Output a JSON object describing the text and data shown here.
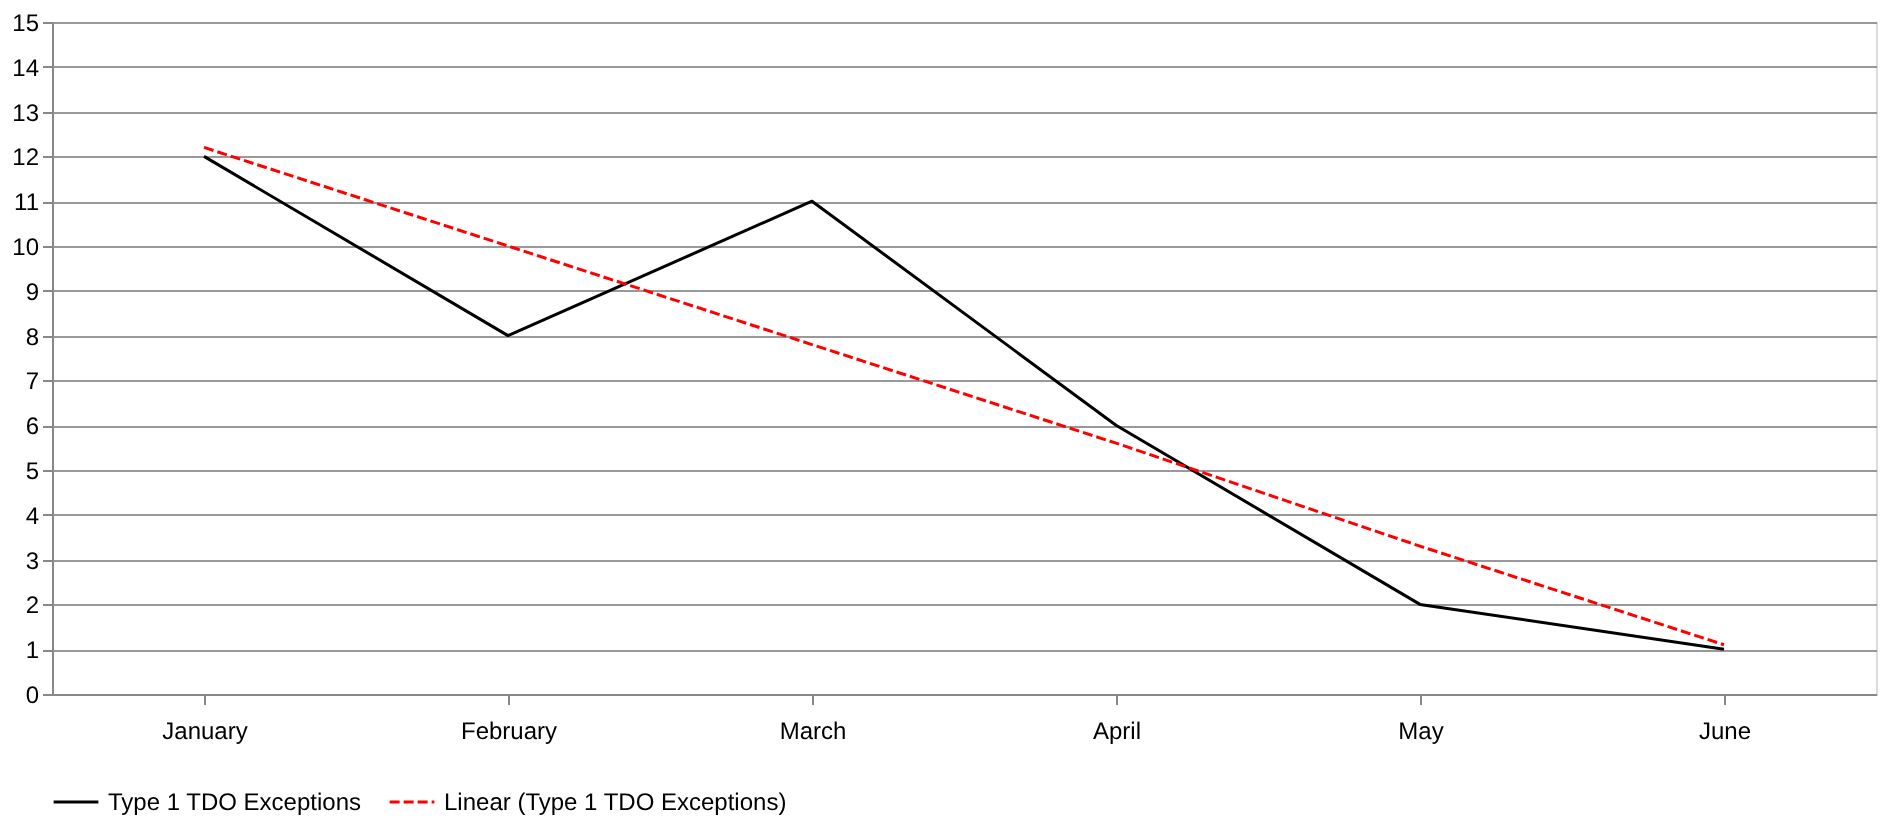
{
  "chart_data": {
    "type": "line",
    "categories": [
      "January",
      "February",
      "March",
      "April",
      "May",
      "June"
    ],
    "series": [
      {
        "name": "Type 1 TDO Exceptions",
        "color": "#000000",
        "values": [
          12,
          8,
          11,
          6,
          2,
          1
        ],
        "line_style": "solid"
      },
      {
        "name": "Linear (Type 1 TDO Exceptions)",
        "color": "#ff0000",
        "values": [
          12.2,
          10.0,
          7.8,
          5.6,
          3.3,
          1.1
        ],
        "type": "line",
        "line_style": "dashed"
      }
    ],
    "ylim": [
      0,
      15
    ],
    "yticks": [
      0,
      1,
      2,
      3,
      4,
      5,
      6,
      7,
      8,
      9,
      10,
      11,
      12,
      13,
      14,
      15
    ],
    "grid": "y",
    "legend": "bottom",
    "marker": "none"
  }
}
